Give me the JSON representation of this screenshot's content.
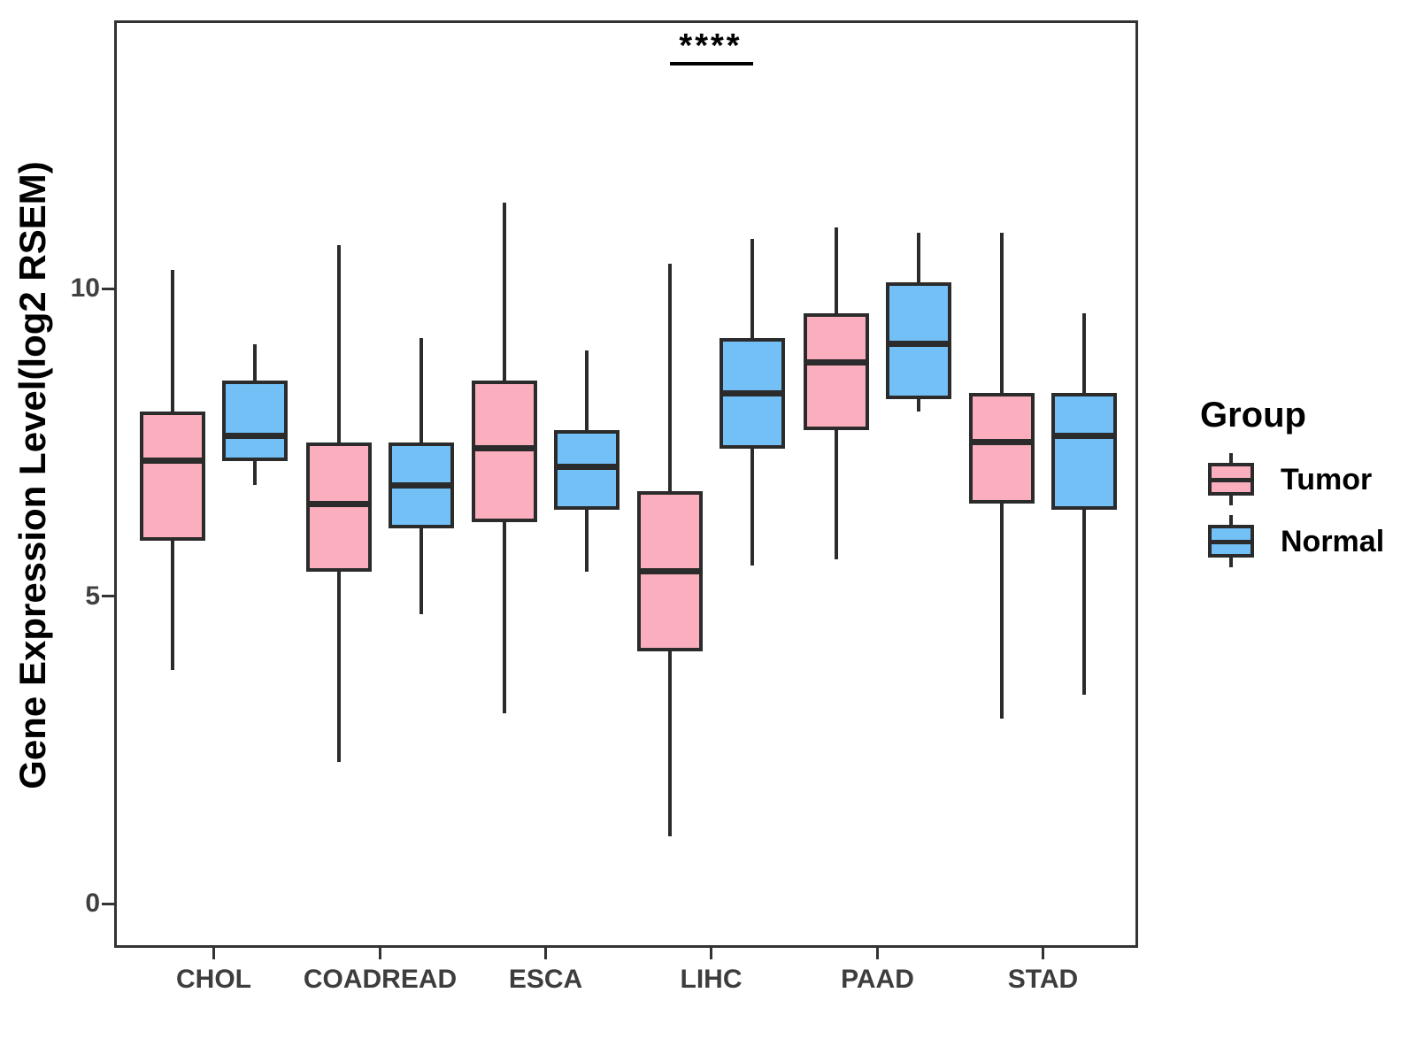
{
  "figure": {
    "y_axis_title": "Gene Expression Level(log2 RSEM)"
  },
  "legend": {
    "title": "Group",
    "entries": [
      {
        "label": "Tumor",
        "color": "#FAAEBE"
      },
      {
        "label": "Normal",
        "color": "#72C0F6"
      }
    ]
  },
  "chart_data": {
    "type": "grouped_boxplot",
    "title": "",
    "ylabel": "Gene Expression Level(log2 RSEM)",
    "xlabel": "",
    "categories": [
      "CHOL",
      "COADREAD",
      "ESCA",
      "LIHC",
      "PAAD",
      "STAD"
    ],
    "y_ticks": [
      0,
      5,
      10
    ],
    "ylim": [
      -0.7,
      14.4
    ],
    "grid": false,
    "legend_position": "right",
    "series": [
      {
        "name": "Tumor",
        "color": "#FAAEBE",
        "stats": [
          {
            "category": "CHOL",
            "min": 3.8,
            "q1": 5.9,
            "median": 7.2,
            "q3": 8.0,
            "max": 10.3
          },
          {
            "category": "COADREAD",
            "min": 2.3,
            "q1": 5.4,
            "median": 6.5,
            "q3": 7.5,
            "max": 10.7
          },
          {
            "category": "ESCA",
            "min": 3.1,
            "q1": 6.2,
            "median": 7.4,
            "q3": 8.5,
            "max": 11.4
          },
          {
            "category": "LIHC",
            "min": 1.1,
            "q1": 4.1,
            "median": 5.4,
            "q3": 6.7,
            "max": 10.4
          },
          {
            "category": "PAAD",
            "min": 5.6,
            "q1": 7.7,
            "median": 8.8,
            "q3": 9.6,
            "max": 11.0
          },
          {
            "category": "STAD",
            "min": 3.0,
            "q1": 6.5,
            "median": 7.5,
            "q3": 8.3,
            "max": 10.9
          }
        ]
      },
      {
        "name": "Normal",
        "color": "#72C0F6",
        "stats": [
          {
            "category": "CHOL",
            "min": 6.8,
            "q1": 7.2,
            "median": 7.6,
            "q3": 8.5,
            "max": 9.1
          },
          {
            "category": "COADREAD",
            "min": 4.7,
            "q1": 6.1,
            "median": 6.8,
            "q3": 7.5,
            "max": 9.2
          },
          {
            "category": "ESCA",
            "min": 5.4,
            "q1": 6.4,
            "median": 7.1,
            "q3": 7.7,
            "max": 9.0
          },
          {
            "category": "LIHC",
            "min": 5.5,
            "q1": 7.4,
            "median": 8.3,
            "q3": 9.2,
            "max": 10.8
          },
          {
            "category": "PAAD",
            "min": 8.0,
            "q1": 8.2,
            "median": 9.1,
            "q3": 10.1,
            "max": 10.9
          },
          {
            "category": "STAD",
            "min": 3.4,
            "q1": 6.4,
            "median": 7.6,
            "q3": 8.3,
            "max": 9.6
          }
        ]
      }
    ],
    "significance": {
      "label": "****",
      "category": "LIHC",
      "between": [
        "Tumor",
        "Normal"
      ]
    }
  },
  "style_colors": {
    "box_stroke": "#2B2B2B",
    "axis_text": "#404040",
    "panel_border": "#333333",
    "tumor_fill": "#FAAEBE",
    "normal_fill": "#72C0F6"
  }
}
